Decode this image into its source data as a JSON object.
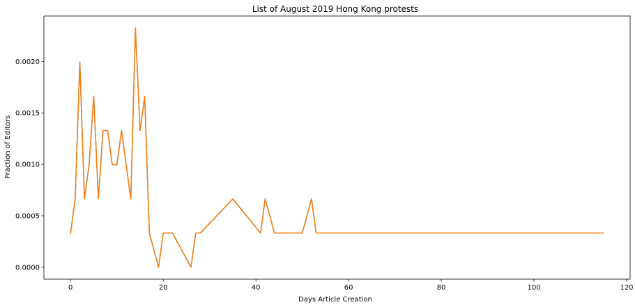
{
  "chart_data": {
    "type": "line",
    "title": "List of August 2019 Hong Kong protests",
    "xlabel": "Days Article Creation",
    "ylabel": "Fraction of Editors",
    "xlim": [
      -5.75,
      120.75
    ],
    "ylim": [
      -0.000116,
      0.002442
    ],
    "xticks": [
      0,
      20,
      40,
      60,
      80,
      100,
      120
    ],
    "yticks": [
      0.0,
      0.0005,
      0.001,
      0.0015,
      0.002
    ],
    "ytick_labels": [
      "0.0000",
      "0.0005",
      "0.0010",
      "0.0015",
      "0.0020"
    ],
    "grid": false,
    "legend": "none",
    "series": [
      {
        "color": "#1f77b4",
        "x": [
          0,
          1,
          2,
          3,
          4,
          5,
          6,
          7,
          8,
          9,
          10,
          11,
          12,
          13,
          14,
          15,
          16,
          17,
          19,
          20,
          22,
          26,
          27,
          28,
          35,
          41,
          42,
          44,
          50,
          52,
          53,
          107
        ],
        "y": [
          0.000332,
          0.000664,
          0.001993,
          0.000664,
          0.000996,
          0.001661,
          0.000664,
          0.001329,
          0.001329,
          0.000996,
          0.000996,
          0.001329,
          0.000996,
          0.000664,
          0.002325,
          0.001329,
          0.001661,
          0.000332,
          0.0,
          0.000332,
          0.000332,
          0.0,
          0.000332,
          0.000332,
          0.000664,
          0.000332,
          0.000664,
          0.000332,
          0.000332,
          0.000664,
          0.000332,
          0.000332
        ]
      },
      {
        "color": "#ff7f0e",
        "x": [
          0,
          1,
          2,
          3,
          4,
          5,
          6,
          7,
          8,
          9,
          10,
          11,
          12,
          13,
          14,
          15,
          16,
          17,
          19,
          20,
          22,
          26,
          27,
          28,
          35,
          41,
          42,
          44,
          50,
          52,
          53,
          115
        ],
        "y": [
          0.000332,
          0.000664,
          0.001993,
          0.000664,
          0.000996,
          0.001661,
          0.000664,
          0.001329,
          0.001329,
          0.000996,
          0.000996,
          0.001329,
          0.000996,
          0.000664,
          0.002325,
          0.001329,
          0.001661,
          0.000332,
          0.0,
          0.000332,
          0.000332,
          0.0,
          0.000332,
          0.000332,
          0.000664,
          0.000332,
          0.000664,
          0.000332,
          0.000332,
          0.000664,
          0.000332,
          0.000332
        ]
      }
    ]
  }
}
